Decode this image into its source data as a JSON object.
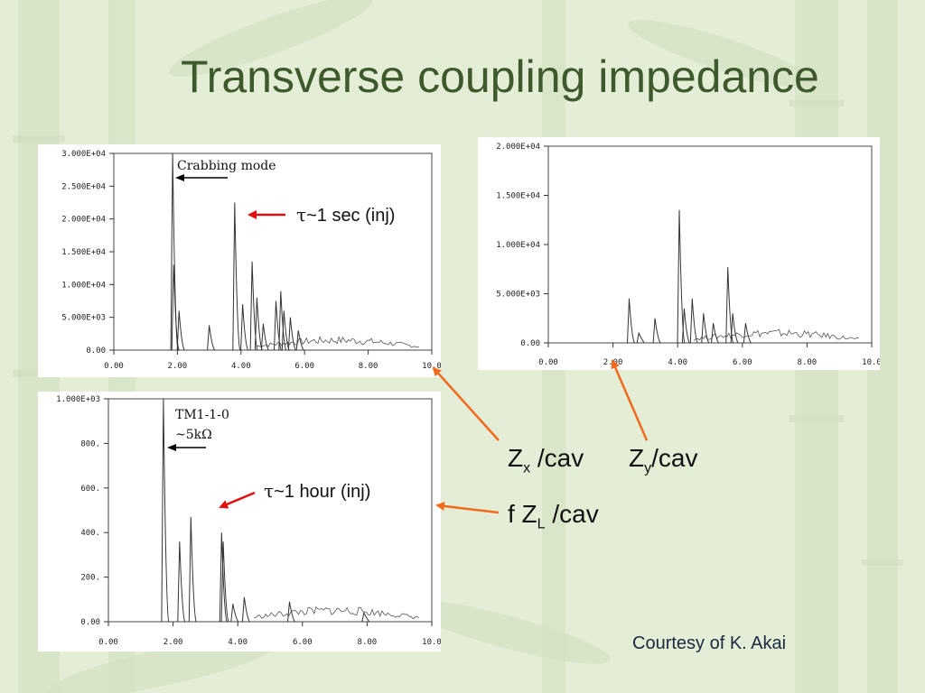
{
  "slide": {
    "title": "Transverse coupling impedance",
    "courtesy": "Courtesy of K. Akai"
  },
  "annotations": {
    "tau_sec": "~1 sec (inj)",
    "tau_hour": "~1 hour (inj)",
    "tau_symbol": "τ",
    "zx": "Z",
    "zx_sub": "x",
    "zx_rest": " /cav",
    "zy": "Z",
    "zy_sub": "y",
    "zy_rest": "/cav",
    "fzl_pre": "f Z",
    "fzl_sub": "L",
    "fzl_rest": " /cav",
    "crabbing_mode": "Crabbing mode",
    "tm_mode": "TM1-1-0",
    "tm_value": "~5kΩ",
    "arrow_color": "#f26a1b",
    "red_arrow_color": "#e01010"
  },
  "chart_data": [
    {
      "type": "line",
      "xlim": [
        0,
        10
      ],
      "ylim": [
        0,
        30000
      ],
      "x_ticks": [
        "0.00",
        "2.00",
        "4.00",
        "6.00",
        "8.00",
        "10.0"
      ],
      "y_ticks": [
        "0.00",
        "5.000E+03",
        "1.000E+04",
        "1.500E+04",
        "2.000E+04",
        "2.500E+04",
        "3.000E+04"
      ],
      "annotation": "Crabbing mode",
      "peaks": [
        {
          "x": 1.85,
          "y": 30000
        },
        {
          "x": 1.88,
          "y": 13000
        },
        {
          "x": 2.05,
          "y": 6000
        },
        {
          "x": 3.0,
          "y": 3800
        },
        {
          "x": 3.8,
          "y": 22500
        },
        {
          "x": 4.05,
          "y": 7000
        },
        {
          "x": 4.35,
          "y": 13500
        },
        {
          "x": 4.5,
          "y": 8000
        },
        {
          "x": 4.7,
          "y": 4000
        },
        {
          "x": 5.1,
          "y": 7500
        },
        {
          "x": 5.25,
          "y": 9000
        },
        {
          "x": 5.35,
          "y": 6000
        },
        {
          "x": 5.55,
          "y": 5000
        },
        {
          "x": 5.8,
          "y": 3000
        }
      ]
    },
    {
      "type": "line",
      "xlim": [
        0,
        10
      ],
      "ylim": [
        0,
        20000
      ],
      "x_ticks": [
        "0.00",
        "2.00",
        "4.00",
        "6.00",
        "8.00",
        "10.0"
      ],
      "y_ticks": [
        "0.00",
        "5.000E+03",
        "1.000E+04",
        "1.500E+04",
        "2.000E+04"
      ],
      "peaks": [
        {
          "x": 2.5,
          "y": 4500
        },
        {
          "x": 2.8,
          "y": 1000
        },
        {
          "x": 3.3,
          "y": 2500
        },
        {
          "x": 4.05,
          "y": 13500
        },
        {
          "x": 4.2,
          "y": 3500
        },
        {
          "x": 4.45,
          "y": 4500
        },
        {
          "x": 4.8,
          "y": 3000
        },
        {
          "x": 5.1,
          "y": 2000
        },
        {
          "x": 5.55,
          "y": 7700
        },
        {
          "x": 5.7,
          "y": 3000
        },
        {
          "x": 6.1,
          "y": 2000
        }
      ]
    },
    {
      "type": "line",
      "xlim": [
        0,
        10
      ],
      "ylim": [
        0,
        1000
      ],
      "x_ticks": [
        "0.00",
        "2.00",
        "4.00",
        "6.00",
        "8.00",
        "10.0"
      ],
      "y_ticks": [
        "0.00",
        "200.",
        "400.",
        "600.",
        "800.",
        "1.000E+03"
      ],
      "annotation": "TM1-1-0 ~5kΩ",
      "peaks": [
        {
          "x": 1.7,
          "y": 1000
        },
        {
          "x": 2.2,
          "y": 360
        },
        {
          "x": 2.55,
          "y": 470
        },
        {
          "x": 3.5,
          "y": 400
        },
        {
          "x": 3.55,
          "y": 360
        },
        {
          "x": 3.85,
          "y": 80
        },
        {
          "x": 4.2,
          "y": 110
        },
        {
          "x": 5.6,
          "y": 90
        },
        {
          "x": 7.9,
          "y": 40
        }
      ]
    }
  ]
}
